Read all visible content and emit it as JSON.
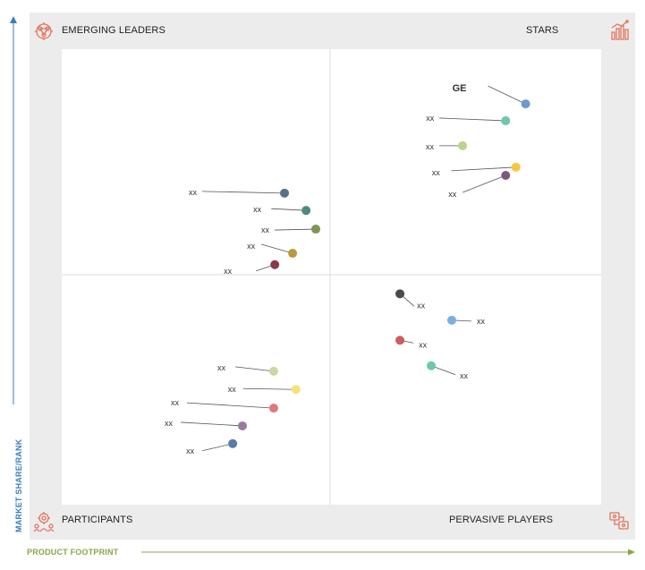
{
  "colors": {
    "y_axis": "#3a7dbf",
    "x_axis": "#8aa547",
    "icon": "#e1755f",
    "frame": "#ececec",
    "divider": "#dddddd",
    "leader": "#555555"
  },
  "quadrants": {
    "top_left": "EMERGING LEADERS",
    "top_right": "STARS",
    "bottom_left": "PARTICIPANTS",
    "bottom_right": "PERVASIVE PLAYERS"
  },
  "icons": {
    "top_left": "brain-network-icon",
    "top_right": "bar-chart-growth-icon",
    "bottom_left": "team-gear-icon",
    "bottom_right": "network-devices-icon"
  },
  "chart_data": {
    "type": "scatter",
    "title": "",
    "xlabel": "PRODUCT FOOTPRINT",
    "ylabel": "MARKET SHARE/RANK",
    "xlim": [
      0,
      100
    ],
    "ylim": [
      0,
      100
    ],
    "grid": false,
    "points": [
      {
        "label": "GE",
        "x": 86.0,
        "y": 88.0,
        "color": "#6b9bc9",
        "bold": true
      },
      {
        "label": "xx",
        "x": 82.3,
        "y": 84.3,
        "color": "#6cc8a8"
      },
      {
        "label": "xx",
        "x": 74.3,
        "y": 78.8,
        "color": "#bcd38e"
      },
      {
        "label": "xx",
        "x": 84.2,
        "y": 74.1,
        "color": "#f5c842"
      },
      {
        "label": "xx",
        "x": 82.3,
        "y": 72.3,
        "color": "#7b5a78"
      },
      {
        "label": "xx",
        "x": 41.3,
        "y": 68.4,
        "color": "#5a6f8c"
      },
      {
        "label": "xx",
        "x": 45.3,
        "y": 64.6,
        "color": "#4d8a7e"
      },
      {
        "label": "xx",
        "x": 47.1,
        "y": 60.5,
        "color": "#7d9652"
      },
      {
        "label": "xx",
        "x": 42.8,
        "y": 55.2,
        "color": "#b99a3c"
      },
      {
        "label": "xx",
        "x": 39.5,
        "y": 52.7,
        "color": "#8a3a4a"
      },
      {
        "label": "xx",
        "x": 62.7,
        "y": 46.3,
        "color": "#4a4a4a"
      },
      {
        "label": "xx",
        "x": 72.3,
        "y": 40.5,
        "color": "#7aaee0"
      },
      {
        "label": "xx",
        "x": 62.7,
        "y": 36.1,
        "color": "#d05b5b"
      },
      {
        "label": "xx",
        "x": 68.5,
        "y": 30.5,
        "color": "#6cc8b0"
      },
      {
        "label": "xx",
        "x": 39.3,
        "y": 29.3,
        "color": "#c8d8a0"
      },
      {
        "label": "xx",
        "x": 43.4,
        "y": 25.3,
        "color": "#f5e27a"
      },
      {
        "label": "xx",
        "x": 39.3,
        "y": 21.2,
        "color": "#e07a7a"
      },
      {
        "label": "xx",
        "x": 33.5,
        "y": 17.3,
        "color": "#9a7aa0"
      },
      {
        "label": "xx",
        "x": 31.7,
        "y": 13.4,
        "color": "#5a7aa8"
      }
    ]
  }
}
